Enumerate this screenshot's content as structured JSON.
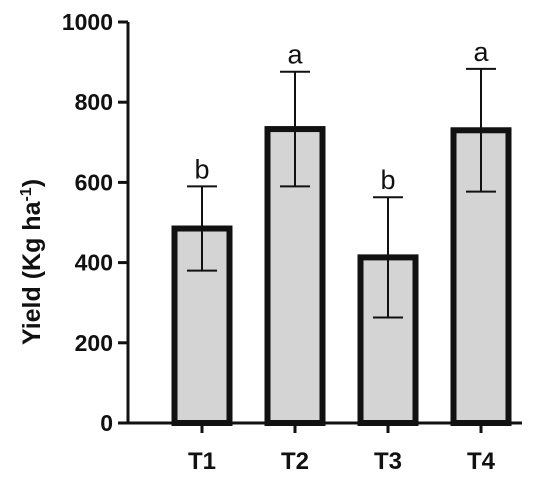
{
  "chart_data": {
    "type": "bar",
    "categories": [
      "T1",
      "T2",
      "T3",
      "T4"
    ],
    "values": [
      485,
      733,
      413,
      730
    ],
    "error": [
      105,
      143,
      150,
      153
    ],
    "significance": [
      "b",
      "a",
      "b",
      "a"
    ],
    "title": "",
    "xlabel": "",
    "ylabel_main": "Yield  (Kg ha",
    "ylabel_sup": "-1",
    "ylabel_close": ")",
    "ylim": [
      0,
      1000
    ],
    "yticks": [
      0,
      200,
      400,
      600,
      800,
      1000
    ],
    "grid": false,
    "legend": "none",
    "colors": {
      "bar_fill": "#d4d4d4",
      "bar_stroke": "#111111",
      "axis": "#111111"
    }
  }
}
